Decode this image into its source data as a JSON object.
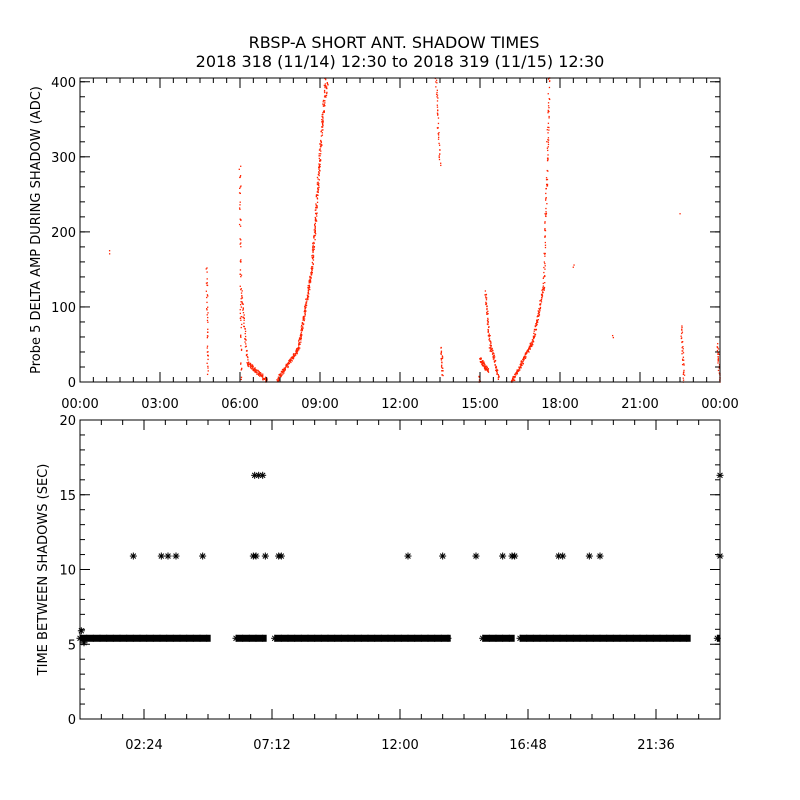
{
  "title_line1": "RBSP-A SHORT ANT. SHADOW TIMES",
  "title_line2": "2018 318 (11/14) 12:30 to 2018 319 (11/15) 12:30",
  "chart_data": [
    {
      "type": "scatter",
      "ylabel": "Probe 5 DELTA AMP DURING SHADOW (ADC)",
      "xlabel": "",
      "x_units": "hours",
      "xlim": [
        0,
        24
      ],
      "ylim": [
        0,
        405
      ],
      "x_ticks": [
        0,
        3,
        6,
        9,
        12,
        15,
        18,
        21,
        24
      ],
      "x_tick_labels": [
        "00:00",
        "03:00",
        "06:00",
        "09:00",
        "12:00",
        "15:00",
        "18:00",
        "21:00",
        "00:00"
      ],
      "y_ticks": [
        0,
        100,
        200,
        300,
        400
      ],
      "y_tick_labels": [
        "0",
        "100",
        "200",
        "300",
        "400"
      ],
      "color": "#ff2200",
      "segments": [
        {
          "x0": 1.1,
          "x1": 1.1,
          "y0": 172,
          "y1": 172,
          "n": 2
        },
        {
          "x0": 4.75,
          "x1": 4.8,
          "y0": 150,
          "y1": 10,
          "n": 40
        },
        {
          "x0": 6.0,
          "x1": 6.05,
          "y0": 285,
          "y1": 5,
          "n": 60
        },
        {
          "x0": 6.05,
          "x1": 6.3,
          "y0": 120,
          "y1": 20,
          "n": 50
        },
        {
          "x0": 6.3,
          "x1": 7.0,
          "y0": 25,
          "y1": 2,
          "n": 90
        },
        {
          "x0": 7.4,
          "x1": 8.2,
          "y0": 3,
          "y1": 45,
          "n": 120
        },
        {
          "x0": 8.2,
          "x1": 8.7,
          "y0": 45,
          "y1": 150,
          "n": 140
        },
        {
          "x0": 8.7,
          "x1": 9.2,
          "y0": 150,
          "y1": 400,
          "n": 200
        },
        {
          "x0": 9.2,
          "x1": 9.3,
          "y0": 380,
          "y1": 400,
          "n": 12
        },
        {
          "x0": 13.35,
          "x1": 13.5,
          "y0": 405,
          "y1": 290,
          "n": 40
        },
        {
          "x0": 13.55,
          "x1": 13.6,
          "y0": 45,
          "y1": 8,
          "n": 25
        },
        {
          "x0": 14.95,
          "x1": 15.0,
          "y0": 10,
          "y1": 0,
          "n": 10
        },
        {
          "x0": 15.0,
          "x1": 15.3,
          "y0": 30,
          "y1": 15,
          "n": 60
        },
        {
          "x0": 15.2,
          "x1": 15.4,
          "y0": 120,
          "y1": 40,
          "n": 60
        },
        {
          "x0": 15.4,
          "x1": 15.7,
          "y0": 50,
          "y1": 5,
          "n": 50
        },
        {
          "x0": 16.2,
          "x1": 17.0,
          "y0": 0,
          "y1": 55,
          "n": 130
        },
        {
          "x0": 17.0,
          "x1": 17.4,
          "y0": 55,
          "y1": 130,
          "n": 80
        },
        {
          "x0": 17.4,
          "x1": 17.6,
          "y0": 130,
          "y1": 405,
          "n": 90
        },
        {
          "x0": 18.5,
          "x1": 18.5,
          "y0": 155,
          "y1": 155,
          "n": 2
        },
        {
          "x0": 20.0,
          "x1": 20.0,
          "y0": 60,
          "y1": 60,
          "n": 2
        },
        {
          "x0": 22.5,
          "x1": 22.5,
          "y0": 225,
          "y1": 225,
          "n": 1
        },
        {
          "x0": 22.55,
          "x1": 22.65,
          "y0": 75,
          "y1": 0,
          "n": 35
        },
        {
          "x0": 23.9,
          "x1": 24.0,
          "y0": 50,
          "y1": 0,
          "n": 30
        }
      ]
    },
    {
      "type": "scatter",
      "ylabel": "TIME BETWEEN SHADOWS (SEC)",
      "xlabel": "",
      "x_units": "hours",
      "xlim": [
        0,
        24
      ],
      "ylim": [
        0,
        20
      ],
      "x_ticks": [
        2.4,
        7.2,
        12.0,
        16.8,
        21.6
      ],
      "x_tick_labels": [
        "02:24",
        "07:12",
        "12:00",
        "16:48",
        "21:36"
      ],
      "y_ticks": [
        0,
        5,
        10,
        15,
        20
      ],
      "y_tick_labels": [
        "0",
        "5",
        "10",
        "15",
        "20"
      ],
      "marker": "*",
      "baseline_value": 5.4,
      "baseline_ranges": [
        [
          0.0,
          4.9
        ],
        [
          5.85,
          7.0
        ],
        [
          7.3,
          13.9
        ],
        [
          15.1,
          16.3
        ],
        [
          16.5,
          22.9
        ],
        [
          23.9,
          24.0
        ]
      ],
      "points": [
        [
          2.0,
          10.9
        ],
        [
          3.05,
          10.9
        ],
        [
          3.3,
          10.9
        ],
        [
          3.6,
          10.9
        ],
        [
          4.6,
          10.9
        ],
        [
          6.5,
          10.9
        ],
        [
          6.6,
          10.9
        ],
        [
          6.95,
          10.9
        ],
        [
          7.45,
          10.9
        ],
        [
          7.55,
          10.9
        ],
        [
          12.3,
          10.9
        ],
        [
          13.6,
          10.9
        ],
        [
          14.85,
          10.9
        ],
        [
          15.85,
          10.9
        ],
        [
          16.2,
          10.9
        ],
        [
          16.3,
          10.9
        ],
        [
          17.95,
          10.9
        ],
        [
          18.1,
          10.9
        ],
        [
          19.1,
          10.9
        ],
        [
          19.5,
          10.9
        ],
        [
          24.0,
          10.9
        ],
        [
          6.55,
          16.3
        ],
        [
          6.7,
          16.3
        ],
        [
          6.85,
          16.3
        ],
        [
          24.0,
          16.3
        ],
        [
          0.05,
          5.9
        ],
        [
          0.15,
          5.1
        ]
      ]
    }
  ]
}
